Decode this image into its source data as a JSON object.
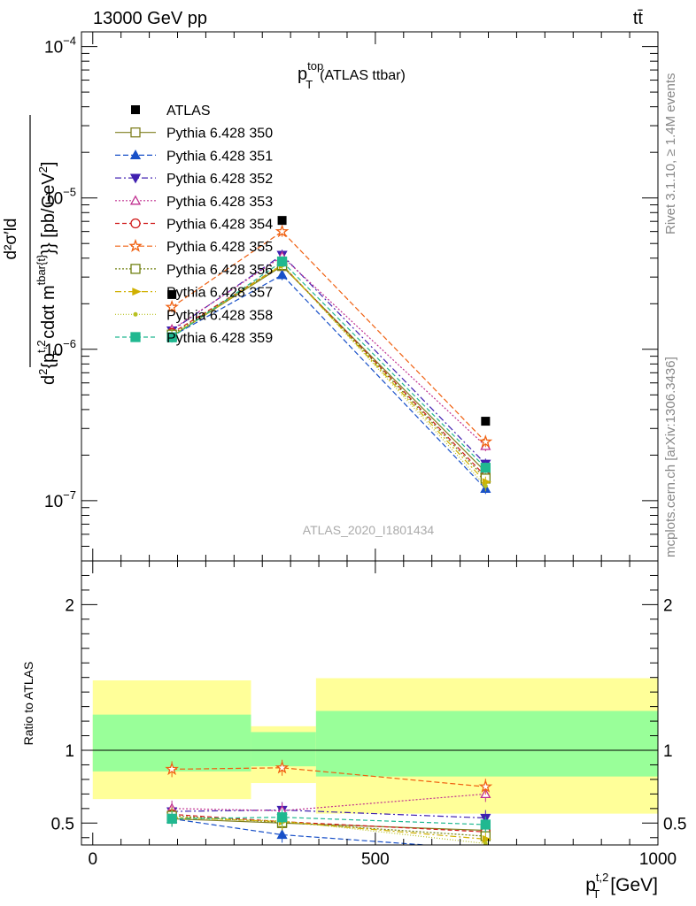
{
  "header": {
    "left_label": "13000 GeV pp",
    "right_label": "tt̄"
  },
  "side_labels": {
    "rivet": "Rivet 3.1.10, ≥ 1.4M events",
    "mcplots": "mcplots.cern.ch [arXiv:1306.3436]"
  },
  "chart_data": [
    {
      "type": "line",
      "panel": "main",
      "title_main": "p",
      "title_sup": "top",
      "title_sub": "T",
      "title_suffix": "(ATLAS ttbar)",
      "watermark": "ATLAS_2020_I1801434",
      "ylabel_parts": {
        "num": "d²σ′ld",
        "den_a": "d",
        "den_b": "{p",
        "den_sup": "t,2",
        "den_sub": "T",
        "den_c": " cdαt m",
        "den_sup2": "tbar{t}",
        "den_d": "}} [pb/GeV",
        "den_sup3": "2",
        "den_e": "]"
      },
      "yscale": "log",
      "ylim": [
        4e-08,
        0.000125
      ],
      "xlim": [
        -20,
        1000
      ],
      "y_ticks": [
        {
          "value": 1e-07,
          "base": "10",
          "exp": "−7"
        },
        {
          "value": 1e-06,
          "base": "10",
          "exp": "−6"
        },
        {
          "value": 1e-05,
          "base": "10",
          "exp": "−5"
        },
        {
          "value": 0.0001,
          "base": "10",
          "exp": "−4"
        }
      ],
      "x": [
        140,
        335,
        695
      ],
      "data_points": {
        "name": "ATLAS",
        "color": "#000000",
        "x": [
          140,
          335,
          695
        ],
        "y": [
          2.3e-06,
          7.1e-06,
          3.35e-07
        ]
      },
      "series": [
        {
          "name": "Pythia 6.428 350",
          "color": "#808020",
          "dash": "",
          "marker": "square-open",
          "y": [
            1.22e-06,
            3.55e-06,
            1.55e-07
          ]
        },
        {
          "name": "Pythia 6.428 351",
          "color": "#1850c8",
          "dash": "6,3",
          "marker": "triangle-up",
          "y": [
            1.22e-06,
            3.1e-06,
            1.2e-07
          ]
        },
        {
          "name": "Pythia 6.428 352",
          "color": "#4020b0",
          "dash": "7,3,2,3",
          "marker": "triangle-down",
          "y": [
            1.33e-06,
            4.2e-06,
            1.75e-07
          ]
        },
        {
          "name": "Pythia 6.428 353",
          "color": "#c03090",
          "dash": "2,2",
          "marker": "triangle-up-open",
          "y": [
            1.35e-06,
            4.1e-06,
            2.3e-07
          ]
        },
        {
          "name": "Pythia 6.428 354",
          "color": "#d01818",
          "dash": "5,3",
          "marker": "circle-open",
          "y": [
            1.28e-06,
            3.6e-06,
            1.45e-07
          ]
        },
        {
          "name": "Pythia 6.428 355",
          "color": "#f06010",
          "dash": "6,3",
          "marker": "star-open",
          "y": [
            1.9e-06,
            6e-06,
            2.45e-07
          ]
        },
        {
          "name": "Pythia 6.428 356",
          "color": "#708010",
          "dash": "2,2",
          "marker": "square-open",
          "y": [
            1.25e-06,
            3.6e-06,
            1.4e-07
          ]
        },
        {
          "name": "Pythia 6.428 357",
          "color": "#d0b000",
          "dash": "7,3,2,3",
          "marker": "triangle-right",
          "y": [
            1.22e-06,
            3.6e-06,
            1.33e-07
          ]
        },
        {
          "name": "Pythia 6.428 358",
          "color": "#b8c020",
          "dash": "1,2",
          "marker": "dot",
          "y": [
            1.23e-06,
            3.65e-06,
            1.25e-07
          ]
        },
        {
          "name": "Pythia 6.428 359",
          "color": "#20b890",
          "dash": "5,3",
          "marker": "square",
          "y": [
            1.2e-06,
            3.8e-06,
            1.65e-07
          ]
        }
      ]
    },
    {
      "type": "line",
      "panel": "ratio",
      "ylabel": "Ratio to ATLAS",
      "xlabel_main": "p",
      "xlabel_sup": "t,2",
      "xlabel_sub": "T",
      "xlabel_unit": "[GeV]",
      "ylim": [
        0.35,
        2.3
      ],
      "xlim": [
        -20,
        1000
      ],
      "y_ticks": [
        {
          "value": 0.5,
          "label": "0.5"
        },
        {
          "value": 1,
          "label": "1"
        },
        {
          "value": 2,
          "label": "2"
        }
      ],
      "x_ticks": [
        {
          "value": 0,
          "label": "0"
        },
        {
          "value": 500,
          "label": "500"
        },
        {
          "value": 1000,
          "label": "1000"
        }
      ],
      "bands": [
        {
          "x0": 0,
          "x1": 280,
          "yellow": [
            0.665,
            1.48
          ],
          "green": [
            0.855,
            1.245
          ]
        },
        {
          "x0": 280,
          "x1": 395,
          "yellow": [
            0.775,
            1.165
          ],
          "green": [
            0.89,
            1.125
          ]
        },
        {
          "x0": 395,
          "x1": 1000,
          "yellow": [
            0.565,
            1.495
          ],
          "green": [
            0.82,
            1.27
          ]
        }
      ],
      "band_colors": {
        "yellow": "#ffff99",
        "green": "#99ff99"
      },
      "x": [
        140,
        335,
        695
      ],
      "series": [
        {
          "name": "Pythia 6.428 350",
          "y": [
            0.53,
            0.5,
            0.45
          ]
        },
        {
          "name": "Pythia 6.428 351",
          "y": [
            0.53,
            0.42,
            0.32
          ]
        },
        {
          "name": "Pythia 6.428 352",
          "y": [
            0.58,
            0.59,
            0.535
          ]
        },
        {
          "name": "Pythia 6.428 353",
          "y": [
            0.6,
            0.585,
            0.7
          ]
        },
        {
          "name": "Pythia 6.428 354",
          "y": [
            0.56,
            0.51,
            0.44
          ]
        },
        {
          "name": "Pythia 6.428 355",
          "y": [
            0.87,
            0.88,
            0.75
          ]
        },
        {
          "name": "Pythia 6.428 356",
          "y": [
            0.55,
            0.505,
            0.41
          ]
        },
        {
          "name": "Pythia 6.428 357",
          "y": [
            0.54,
            0.51,
            0.39
          ]
        },
        {
          "name": "Pythia 6.428 358",
          "y": [
            0.535,
            0.515,
            0.36
          ]
        },
        {
          "name": "Pythia 6.428 359",
          "y": [
            0.53,
            0.54,
            0.49
          ]
        }
      ]
    }
  ]
}
